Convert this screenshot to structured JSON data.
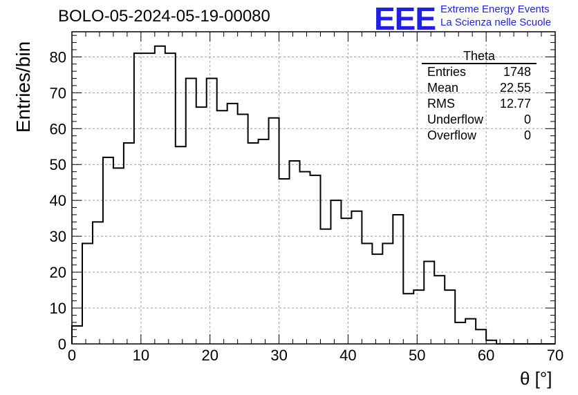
{
  "title": "BOLO-05-2024-05-19-00080",
  "logo": {
    "mark": "EEE",
    "line1": "Extreme Energy Events",
    "line2": "La Scienza nelle Scuole",
    "color": "#1f1fe6"
  },
  "stats_box": {
    "title": "Theta",
    "rows": [
      {
        "label": "Entries",
        "value": "1748"
      },
      {
        "label": "Mean",
        "value": "22.55"
      },
      {
        "label": "RMS",
        "value": "12.77"
      },
      {
        "label": "Underflow",
        "value": "0"
      },
      {
        "label": "Overflow",
        "value": "0"
      }
    ]
  },
  "chart_data": {
    "type": "bar",
    "histogram": true,
    "xlabel": "θ [°]",
    "ylabel": "Entries/bin",
    "xlim": [
      0,
      70
    ],
    "ylim": [
      0,
      87
    ],
    "grid": true,
    "bin_width": 1.5,
    "x_ticks": [
      0,
      10,
      20,
      30,
      40,
      50,
      60,
      70
    ],
    "y_ticks": [
      0,
      10,
      20,
      30,
      40,
      50,
      60,
      70,
      80
    ],
    "bin_edges_start": 0,
    "values": [
      5,
      28,
      34,
      52,
      49,
      56,
      81,
      81,
      83,
      81,
      55,
      74,
      66,
      74,
      65,
      67,
      64,
      56,
      57,
      63,
      46,
      51,
      48,
      47,
      32,
      40,
      35,
      37,
      28,
      25,
      28,
      36,
      14,
      15,
      23,
      19,
      15,
      6,
      7,
      4,
      1,
      0,
      0,
      0,
      0,
      0,
      0
    ]
  }
}
